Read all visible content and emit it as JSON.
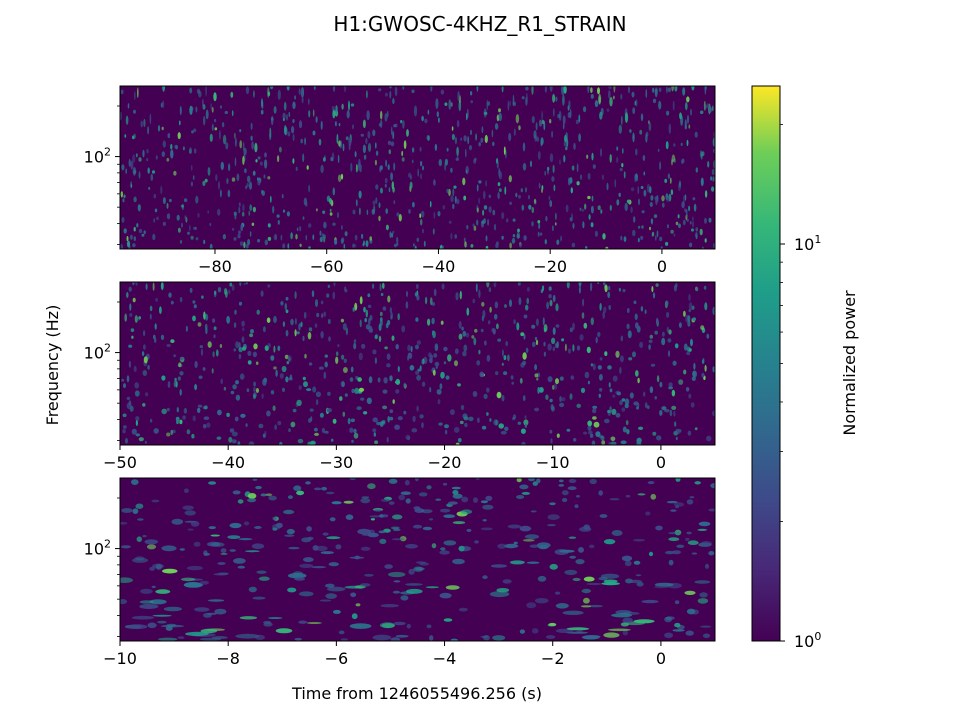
{
  "chart_data": {
    "type": "heatmap",
    "title": "H1:GWOSC-4KHZ_R1_STRAIN",
    "xlabel": "Time from 1246055496.256 (s)",
    "ylabel": "Frequency (Hz)",
    "colorbar": {
      "label": "Normalized power",
      "scale": "log",
      "range": [
        1,
        25
      ],
      "ticks": [
        {
          "value": 1,
          "base": "10",
          "exp": "0"
        },
        {
          "value": 10,
          "base": "10",
          "exp": "1"
        }
      ],
      "colormap": "viridis"
    },
    "panels": [
      {
        "name": "panel-1",
        "xlim": [
          -97,
          9.5
        ],
        "xticks": [
          {
            "value": -80,
            "label": "−80"
          },
          {
            "value": -60,
            "label": "−60"
          },
          {
            "value": -40,
            "label": "−40"
          },
          {
            "value": -20,
            "label": "−20"
          },
          {
            "value": 0,
            "label": "0"
          }
        ],
        "y_scale": "log",
        "ytick": {
          "value": 100,
          "base": "10",
          "exp": "2"
        }
      },
      {
        "name": "panel-2",
        "xlim": [
          -50,
          5
        ],
        "xticks": [
          {
            "value": -50,
            "label": "−50"
          },
          {
            "value": -40,
            "label": "−40"
          },
          {
            "value": -30,
            "label": "−30"
          },
          {
            "value": -20,
            "label": "−20"
          },
          {
            "value": -10,
            "label": "−10"
          },
          {
            "value": 0,
            "label": "0"
          }
        ],
        "y_scale": "log",
        "ytick": {
          "value": 100,
          "base": "10",
          "exp": "2"
        }
      },
      {
        "name": "panel-3",
        "xlim": [
          -10,
          1
        ],
        "xticks": [
          {
            "value": -10,
            "label": "−10"
          },
          {
            "value": -8,
            "label": "−8"
          },
          {
            "value": -6,
            "label": "−6"
          },
          {
            "value": -4,
            "label": "−4"
          },
          {
            "value": -2,
            "label": "−2"
          },
          {
            "value": 0,
            "label": "0"
          }
        ],
        "y_scale": "log",
        "ytick": {
          "value": 100,
          "base": "10",
          "exp": "2"
        }
      }
    ]
  }
}
